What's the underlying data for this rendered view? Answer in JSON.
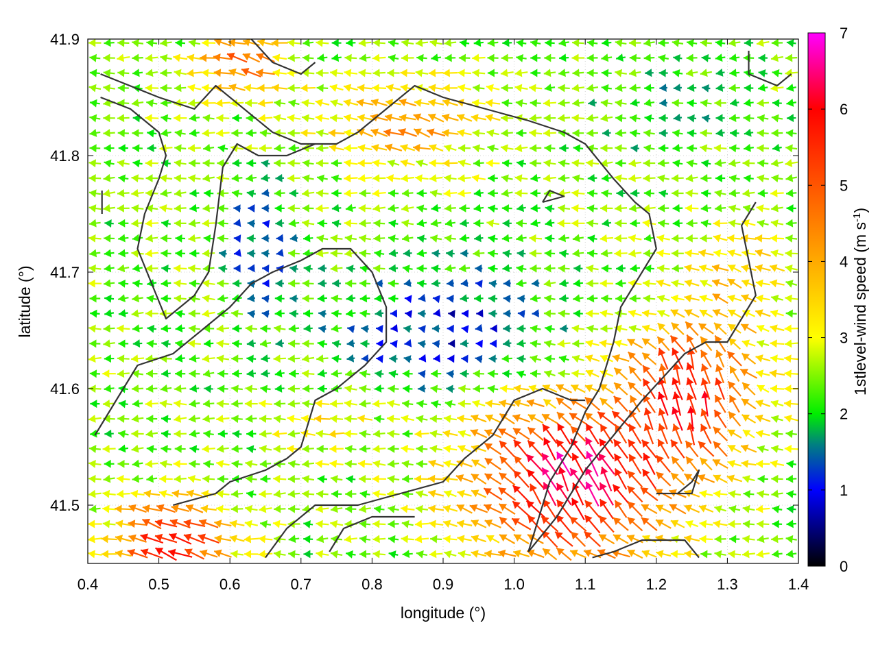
{
  "chart_data": {
    "type": "vector-field",
    "title": "",
    "xlabel": "longitude (°)",
    "ylabel": "latitude (°)",
    "xlim": [
      0.4,
      1.4
    ],
    "ylim": [
      41.45,
      41.9
    ],
    "xticks": [
      "0.4",
      "0.5",
      "0.6",
      "0.7",
      "0.8",
      "0.9",
      "1.0",
      "1.1",
      "1.2",
      "1.3",
      "1.4"
    ],
    "yticks": [
      "41.5",
      "41.6",
      "41.7",
      "41.8",
      "41.9"
    ],
    "grid": true,
    "colorbar": {
      "label": "1stlevel-wind speed (m s",
      "label_sup": "-1",
      "label_end": ")",
      "range": [
        0,
        7
      ],
      "ticks": [
        "0",
        "1",
        "2",
        "3",
        "4",
        "5",
        "6",
        "7"
      ],
      "palette_stops": [
        {
          "value": 0,
          "color": "#000000"
        },
        {
          "value": 1,
          "color": "#0000ff"
        },
        {
          "value": 1.6,
          "color": "#008080"
        },
        {
          "value": 2,
          "color": "#00ee00"
        },
        {
          "value": 3,
          "color": "#ffff00"
        },
        {
          "value": 4,
          "color": "#ffaa00"
        },
        {
          "value": 5,
          "color": "#ff5500"
        },
        {
          "value": 6,
          "color": "#ff0000"
        },
        {
          "value": 7,
          "color": "#ff00ff"
        }
      ]
    },
    "grid_step_deg": 0.02,
    "wind_regions": [
      {
        "name": "southeast-strong",
        "center": [
          1.08,
          41.52
        ],
        "radius": [
          0.16,
          0.08
        ],
        "speed": 6.4,
        "dir": [
          -0.45,
          0.9
        ]
      },
      {
        "name": "east-strong",
        "center": [
          1.25,
          41.6
        ],
        "radius": [
          0.1,
          0.07
        ],
        "speed": 5.6,
        "dir": [
          -0.2,
          1.0
        ]
      },
      {
        "name": "southwest-strong",
        "center": [
          0.52,
          41.47
        ],
        "radius": [
          0.09,
          0.04
        ],
        "speed": 6.0,
        "dir": [
          -0.9,
          0.4
        ]
      },
      {
        "name": "north-band",
        "center": [
          0.85,
          41.83
        ],
        "radius": [
          0.13,
          0.04
        ],
        "speed": 4.3,
        "dir": [
          -1.0,
          0.35
        ]
      },
      {
        "name": "north-west-band",
        "center": [
          0.62,
          41.88
        ],
        "radius": [
          0.07,
          0.03
        ],
        "speed": 4.8,
        "dir": [
          -1.0,
          0.3
        ]
      },
      {
        "name": "center-calm",
        "center": [
          0.9,
          41.65
        ],
        "radius": [
          0.17,
          0.06
        ],
        "speed": 1.0,
        "dir": [
          -1.0,
          0.0
        ]
      },
      {
        "name": "west-calm",
        "center": [
          0.64,
          41.72
        ],
        "radius": [
          0.05,
          0.06
        ],
        "speed": 1.2,
        "dir": [
          -1.0,
          0.0
        ]
      },
      {
        "name": "mid-south-moderate",
        "center": [
          0.74,
          41.57
        ],
        "radius": [
          0.08,
          0.03
        ],
        "speed": 3.3,
        "dir": [
          -1.0,
          0.05
        ]
      },
      {
        "name": "east-moderate",
        "center": [
          1.32,
          41.7
        ],
        "radius": [
          0.07,
          0.05
        ],
        "speed": 3.5,
        "dir": [
          -0.9,
          0.3
        ]
      },
      {
        "name": "northeast-green",
        "center": [
          1.2,
          41.85
        ],
        "radius": [
          0.15,
          0.06
        ],
        "speed": 2.0,
        "dir": [
          -1.0,
          0.0
        ]
      }
    ],
    "base_speed": 2.4,
    "base_dir": [
      -1.0,
      0.0
    ],
    "contours": [
      [
        [
          0.418,
          41.87
        ],
        [
          0.5,
          41.85
        ],
        [
          0.55,
          41.84
        ],
        [
          0.58,
          41.86
        ],
        [
          0.62,
          41.84
        ],
        [
          0.66,
          41.82
        ],
        [
          0.7,
          41.81
        ],
        [
          0.75,
          41.81
        ],
        [
          0.78,
          41.82
        ],
        [
          0.82,
          41.84
        ],
        [
          0.86,
          41.86
        ],
        [
          0.9,
          41.85
        ],
        [
          0.96,
          41.84
        ],
        [
          1.02,
          41.83
        ],
        [
          1.07,
          41.82
        ],
        [
          1.1,
          41.81
        ],
        [
          1.14,
          41.78
        ],
        [
          1.17,
          41.76
        ],
        [
          1.19,
          41.75
        ],
        [
          1.2,
          41.72
        ],
        [
          1.17,
          41.69
        ],
        [
          1.15,
          41.67
        ],
        [
          1.14,
          41.64
        ],
        [
          1.12,
          41.6
        ],
        [
          1.1,
          41.58
        ],
        [
          1.08,
          41.55
        ],
        [
          1.05,
          41.52
        ],
        [
          1.03,
          41.48
        ],
        [
          1.02,
          41.46
        ]
      ],
      [
        [
          0.418,
          41.85
        ],
        [
          0.46,
          41.84
        ],
        [
          0.5,
          41.82
        ],
        [
          0.51,
          41.8
        ],
        [
          0.5,
          41.78
        ],
        [
          0.48,
          41.75
        ],
        [
          0.47,
          41.72
        ],
        [
          0.49,
          41.69
        ],
        [
          0.51,
          41.66
        ],
        [
          0.55,
          41.68
        ],
        [
          0.57,
          41.7
        ],
        [
          0.58,
          41.74
        ],
        [
          0.59,
          41.79
        ],
        [
          0.61,
          41.81
        ],
        [
          0.64,
          41.8
        ],
        [
          0.68,
          41.8
        ],
        [
          0.72,
          41.81
        ]
      ],
      [
        [
          0.41,
          41.56
        ],
        [
          0.44,
          41.59
        ],
        [
          0.47,
          41.62
        ],
        [
          0.52,
          41.63
        ],
        [
          0.56,
          41.65
        ],
        [
          0.6,
          41.67
        ],
        [
          0.63,
          41.69
        ],
        [
          0.66,
          41.7
        ],
        [
          0.7,
          41.71
        ],
        [
          0.73,
          41.72
        ],
        [
          0.77,
          41.72
        ],
        [
          0.8,
          41.7
        ],
        [
          0.82,
          41.67
        ],
        [
          0.82,
          41.64
        ],
        [
          0.79,
          41.62
        ],
        [
          0.75,
          41.6
        ],
        [
          0.72,
          41.59
        ],
        [
          0.71,
          41.57
        ],
        [
          0.7,
          41.55
        ],
        [
          0.68,
          41.54
        ],
        [
          0.65,
          41.53
        ],
        [
          0.6,
          41.52
        ],
        [
          0.58,
          41.51
        ],
        [
          0.52,
          41.5
        ]
      ],
      [
        [
          0.65,
          41.455
        ],
        [
          0.68,
          41.48
        ],
        [
          0.72,
          41.5
        ],
        [
          0.78,
          41.5
        ],
        [
          0.84,
          41.51
        ],
        [
          0.9,
          41.52
        ],
        [
          0.93,
          41.54
        ],
        [
          0.97,
          41.56
        ],
        [
          1.0,
          41.59
        ],
        [
          1.04,
          41.6
        ],
        [
          1.08,
          41.59
        ],
        [
          1.1,
          41.59
        ]
      ],
      [
        [
          1.02,
          41.46
        ],
        [
          1.06,
          41.49
        ],
        [
          1.1,
          41.53
        ],
        [
          1.14,
          41.56
        ],
        [
          1.18,
          41.59
        ],
        [
          1.21,
          41.61
        ],
        [
          1.24,
          41.63
        ],
        [
          1.27,
          41.64
        ],
        [
          1.3,
          41.64
        ],
        [
          1.32,
          41.66
        ],
        [
          1.34,
          41.68
        ],
        [
          1.33,
          41.71
        ],
        [
          1.32,
          41.74
        ],
        [
          1.34,
          41.76
        ]
      ],
      [
        [
          0.74,
          41.46
        ],
        [
          0.76,
          41.48
        ],
        [
          0.8,
          41.49
        ],
        [
          0.86,
          41.49
        ]
      ],
      [
        [
          1.11,
          41.455
        ],
        [
          1.14,
          41.46
        ],
        [
          1.18,
          41.47
        ],
        [
          1.24,
          41.47
        ],
        [
          1.26,
          41.455
        ]
      ],
      [
        [
          1.2,
          41.51
        ],
        [
          1.23,
          41.51
        ],
        [
          1.25,
          41.52
        ],
        [
          1.26,
          41.53
        ],
        [
          1.25,
          41.51
        ],
        [
          1.22,
          41.51
        ]
      ],
      [
        [
          0.63,
          41.9
        ],
        [
          0.66,
          41.88
        ],
        [
          0.7,
          41.87
        ],
        [
          0.72,
          41.88
        ]
      ],
      [
        [
          0.42,
          41.77
        ],
        [
          0.42,
          41.75
        ]
      ],
      [
        [
          1.04,
          41.76
        ],
        [
          1.07,
          41.765
        ],
        [
          1.05,
          41.77
        ],
        [
          1.04,
          41.76
        ]
      ],
      [
        [
          1.33,
          41.89
        ],
        [
          1.33,
          41.87
        ],
        [
          1.37,
          41.86
        ],
        [
          1.39,
          41.87
        ]
      ]
    ]
  }
}
